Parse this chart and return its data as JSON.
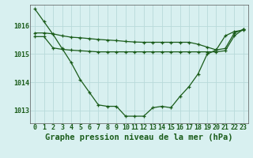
{
  "background_color": "#d8f0f0",
  "grid_color": "#c8e8e8",
  "line_color": "#1a5c1a",
  "title": "Graphe pression niveau de la mer (hPa)",
  "xlim": [
    -0.5,
    23.5
  ],
  "ylim": [
    1012.55,
    1016.75
  ],
  "yticks": [
    1013,
    1014,
    1015,
    1016
  ],
  "xticks": [
    0,
    1,
    2,
    3,
    4,
    5,
    6,
    7,
    8,
    9,
    10,
    11,
    12,
    13,
    14,
    15,
    16,
    17,
    18,
    19,
    20,
    21,
    22,
    23
  ],
  "series1": [
    1016.6,
    1016.15,
    1015.7,
    1015.2,
    1014.7,
    1014.1,
    1013.65,
    1013.2,
    1013.15,
    1013.15,
    1012.8,
    1012.8,
    1012.8,
    1013.1,
    1013.15,
    1013.1,
    1013.5,
    1013.85,
    1014.3,
    1015.0,
    1015.15,
    1015.65,
    1015.8,
    1015.85
  ],
  "series2": [
    1015.75,
    1015.75,
    1015.72,
    1015.65,
    1015.6,
    1015.58,
    1015.55,
    1015.52,
    1015.5,
    1015.48,
    1015.45,
    1015.43,
    1015.42,
    1015.42,
    1015.42,
    1015.42,
    1015.42,
    1015.42,
    1015.35,
    1015.25,
    1015.15,
    1015.2,
    1015.75,
    1015.88
  ],
  "series3": [
    1015.62,
    1015.62,
    1015.22,
    1015.17,
    1015.14,
    1015.12,
    1015.1,
    1015.08,
    1015.08,
    1015.08,
    1015.08,
    1015.08,
    1015.08,
    1015.08,
    1015.08,
    1015.08,
    1015.08,
    1015.08,
    1015.08,
    1015.08,
    1015.08,
    1015.12,
    1015.65,
    1015.88
  ],
  "title_fontsize": 7.5,
  "tick_fontsize": 6.0
}
